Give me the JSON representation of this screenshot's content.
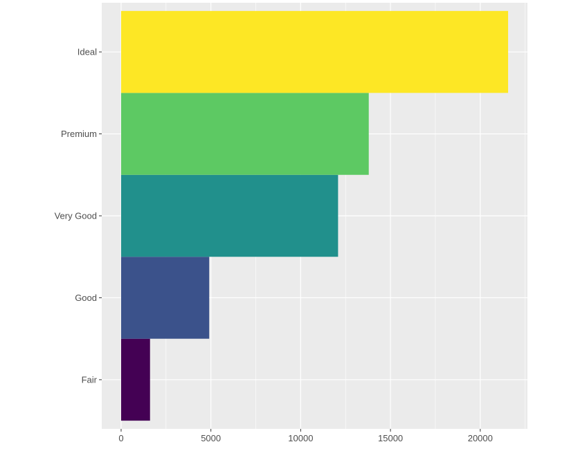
{
  "chart_data": {
    "type": "bar",
    "orientation": "horizontal",
    "title": "",
    "xlabel": "",
    "ylabel": "",
    "categories": [
      "Fair",
      "Good",
      "Very Good",
      "Premium",
      "Ideal"
    ],
    "values": [
      1610,
      4906,
      12082,
      13791,
      21551
    ],
    "xlim": [
      -1078,
      22629
    ],
    "x_ticks": [
      0,
      5000,
      10000,
      15000,
      20000
    ],
    "x_tick_labels": [
      "0",
      "5000",
      "10000",
      "15000",
      "20000"
    ],
    "grid": true,
    "legend": "none",
    "panel_background": "#ebebeb",
    "gridline_color": "#ffffff",
    "bar_colors": [
      "#440154",
      "#3b528b",
      "#21908c",
      "#5dc963",
      "#fde725"
    ]
  }
}
